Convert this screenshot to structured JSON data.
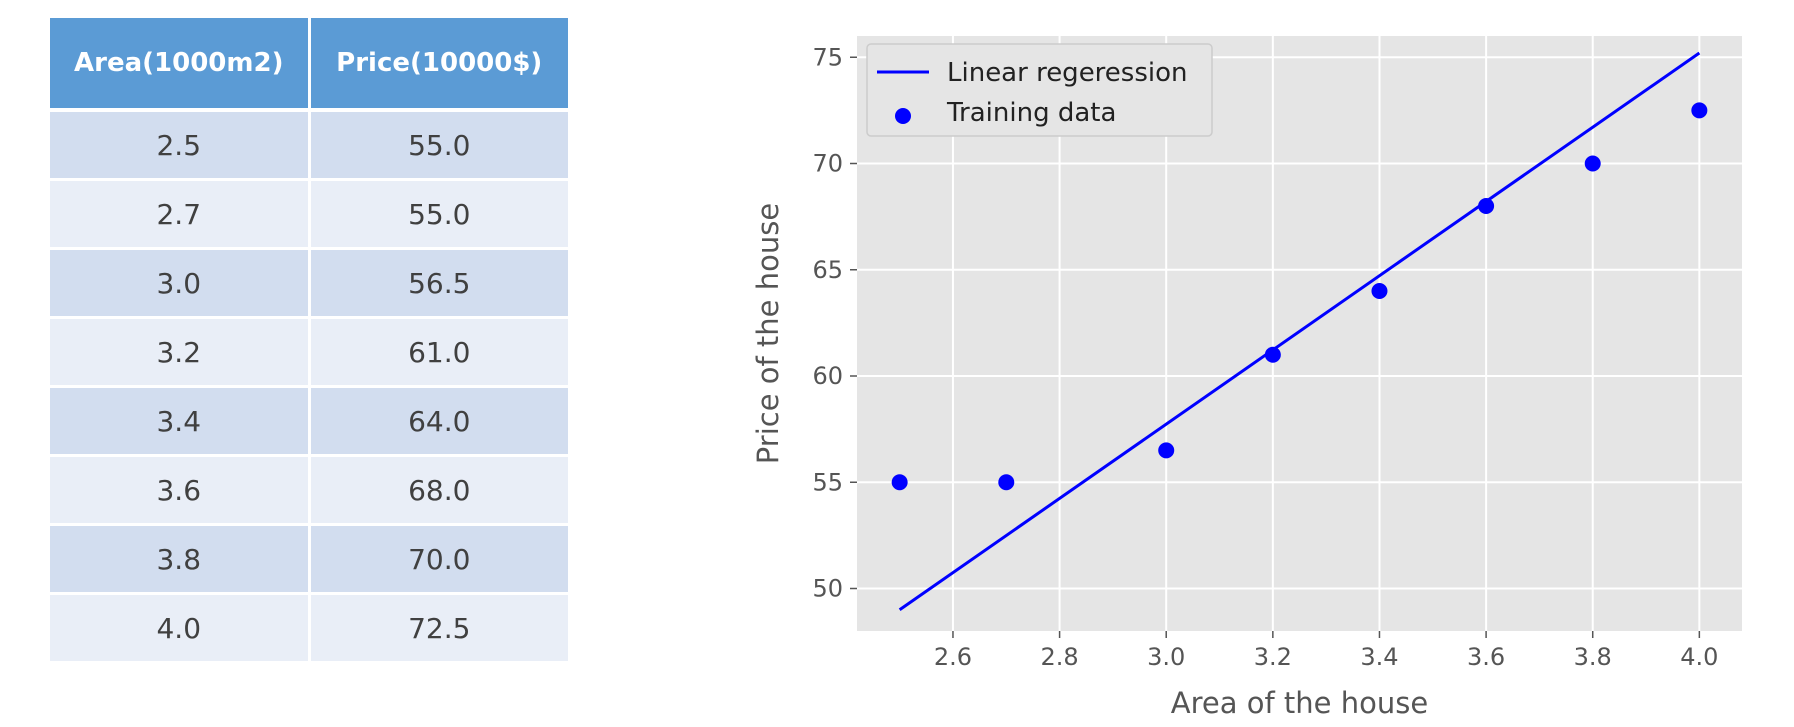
{
  "table": {
    "headers": [
      "Area(1000m2)",
      "Price(10000$)"
    ],
    "rows": [
      [
        "2.5",
        "55.0"
      ],
      [
        "2.7",
        "55.0"
      ],
      [
        "3.0",
        "56.5"
      ],
      [
        "3.2",
        "61.0"
      ],
      [
        "3.4",
        "64.0"
      ],
      [
        "3.6",
        "68.0"
      ],
      [
        "3.8",
        "70.0"
      ],
      [
        "4.0",
        "72.5"
      ]
    ]
  },
  "chart_data": {
    "type": "scatter",
    "xlabel": "Area of the house",
    "ylabel": "Price of the house",
    "xlim": [
      2.42,
      4.08
    ],
    "ylim": [
      48.0,
      76.0
    ],
    "xticks": [
      2.6,
      2.8,
      3.0,
      3.2,
      3.4,
      3.6,
      3.8,
      4.0
    ],
    "xtick_labels": [
      "2.6",
      "2.8",
      "3.0",
      "3.2",
      "3.4",
      "3.6",
      "3.8",
      "4.0"
    ],
    "yticks": [
      50,
      55,
      60,
      65,
      70,
      75
    ],
    "ytick_labels": [
      "50",
      "55",
      "60",
      "65",
      "70",
      "75"
    ],
    "grid": true,
    "background": "#e5e5e5",
    "legend_position": "top-left",
    "series": [
      {
        "name": "Linear regeression",
        "kind": "line",
        "color": "#0000ff",
        "x": [
          2.5,
          4.0
        ],
        "y": [
          49.0,
          75.2
        ]
      },
      {
        "name": "Training data",
        "kind": "scatter",
        "color": "#0000ff",
        "x": [
          2.5,
          2.7,
          3.0,
          3.2,
          3.4,
          3.6,
          3.8,
          4.0
        ],
        "y": [
          55.0,
          55.0,
          56.5,
          61.0,
          64.0,
          68.0,
          70.0,
          72.5
        ]
      }
    ]
  }
}
